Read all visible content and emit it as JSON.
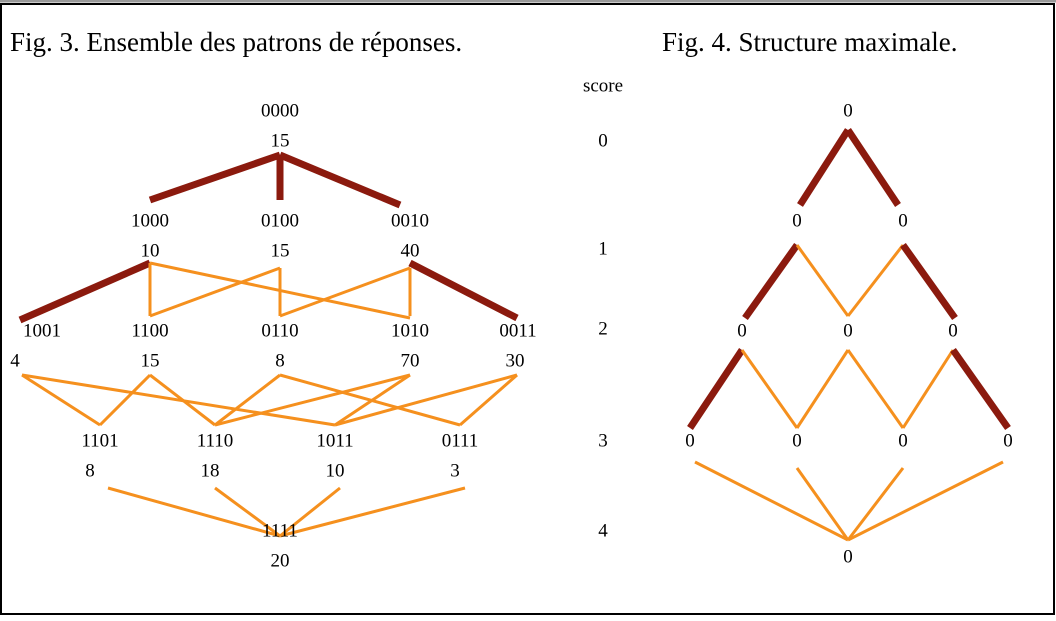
{
  "fig3": {
    "title": "Fig. 3. Ensemble des patrons de réponses.",
    "nodes": [
      {
        "label": "0000",
        "count": "15"
      },
      {
        "label": "1000",
        "count": "10"
      },
      {
        "label": "0100",
        "count": "15"
      },
      {
        "label": "0010",
        "count": "40"
      },
      {
        "label": "1001",
        "count": "4"
      },
      {
        "label": "1100",
        "count": "15"
      },
      {
        "label": "0110",
        "count": "8"
      },
      {
        "label": "1010",
        "count": "70"
      },
      {
        "label": "0011",
        "count": "30"
      },
      {
        "label": "1101",
        "count": "8"
      },
      {
        "label": "1110",
        "count": "18"
      },
      {
        "label": "1011",
        "count": "10"
      },
      {
        "label": "0111",
        "count": "3"
      },
      {
        "label": "1111",
        "count": "20"
      }
    ]
  },
  "score": {
    "header": "score",
    "values": [
      "0",
      "1",
      "2",
      "3",
      "4"
    ]
  },
  "fig4": {
    "title": "Fig. 4. Structure maximale.",
    "nodes": [
      "0",
      "0",
      "0",
      "0",
      "0",
      "0",
      "0",
      "0",
      "0",
      "0",
      "0"
    ]
  }
}
